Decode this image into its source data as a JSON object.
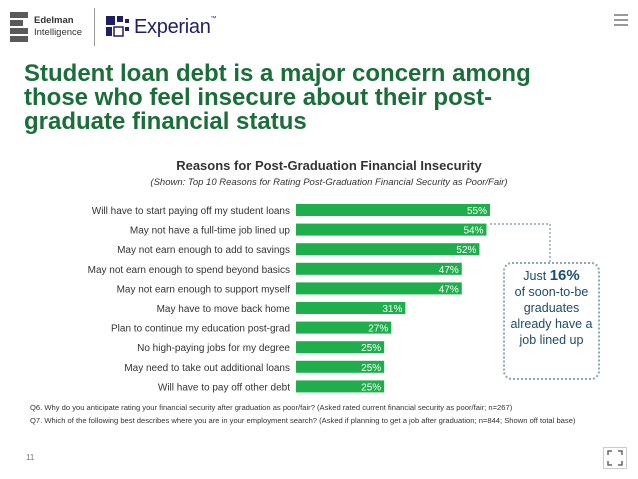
{
  "logos": {
    "edelman_line1": "Edelman",
    "edelman_line2": "Intelligence",
    "experian": "Experian"
  },
  "slide": {
    "title": "Student loan debt is a major concern among those who feel insecure about their post-graduate financial status",
    "page_number": "11"
  },
  "callout": {
    "prefix": "Just ",
    "percent": "16%",
    "rest": "of soon-to-be graduates already have a job lined up"
  },
  "footnotes": {
    "q6": "Q6. Why do you anticipate rating your financial security after graduation as poor/fair? (Asked rated current financial security as poor/fair; n=267)",
    "q7": "Q7. Which of the following best describes where you are in your employment search? (Asked if planning to get a job after graduation; n=844; Shown off total base)"
  },
  "colors": {
    "bar": "#1eae4b",
    "title": "#1b6e3a",
    "callout_border": "#8aa8b8"
  },
  "chart_data": {
    "type": "bar",
    "orientation": "horizontal",
    "title": "Reasons for Post-Graduation Financial Insecurity",
    "subtitle": "(Shown: Top 10 Reasons for Rating Post-Graduation Financial Security as Poor/Fair)",
    "categories": [
      "Will have to start paying off my student loans",
      "May not have a full-time job lined up",
      "May not earn enough to add to savings",
      "May not earn enough to spend beyond basics",
      "May not earn enough to support myself",
      "May have to move back home",
      "Plan to continue my education post-grad",
      "No high-paying jobs for my degree",
      "May need to take out additional loans",
      "Will have to pay off other debt"
    ],
    "values": [
      55,
      54,
      52,
      47,
      47,
      31,
      27,
      25,
      25,
      25
    ],
    "data_labels": [
      "55%",
      "54%",
      "52%",
      "47%",
      "47%",
      "31%",
      "27%",
      "25%",
      "25%",
      "25%"
    ],
    "xlim": [
      0,
      55
    ],
    "grid": false,
    "legend": "none"
  }
}
